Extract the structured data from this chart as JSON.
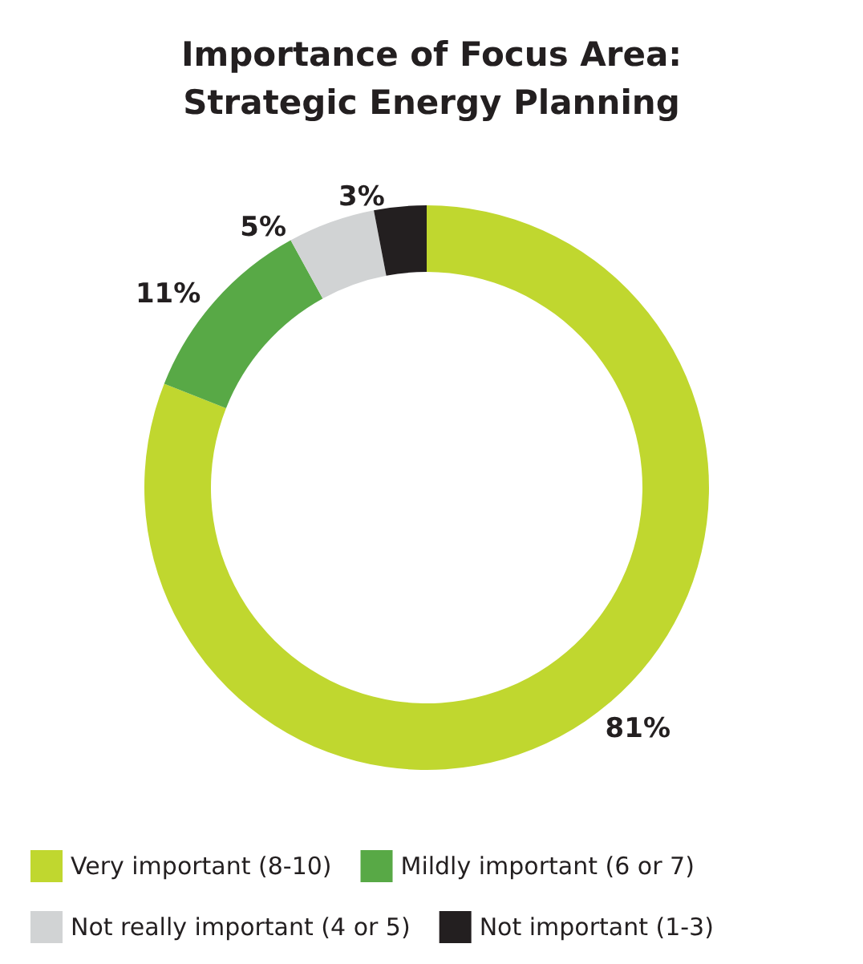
{
  "chart_data": {
    "type": "donut",
    "title": "Importance of Focus Area:\nStrategic Energy Planning",
    "categories": [
      "Very important (8-10)",
      "Mildly important (6 or 7)",
      "Not really important (4 or 5)",
      "Not important (1-3)"
    ],
    "values": [
      81,
      11,
      5,
      3
    ],
    "value_labels": [
      "81%",
      "11%",
      "5%",
      "3%"
    ],
    "colors": [
      "#c0d72f",
      "#58a946",
      "#d1d3d4",
      "#231f20"
    ],
    "legend": "bottom"
  }
}
